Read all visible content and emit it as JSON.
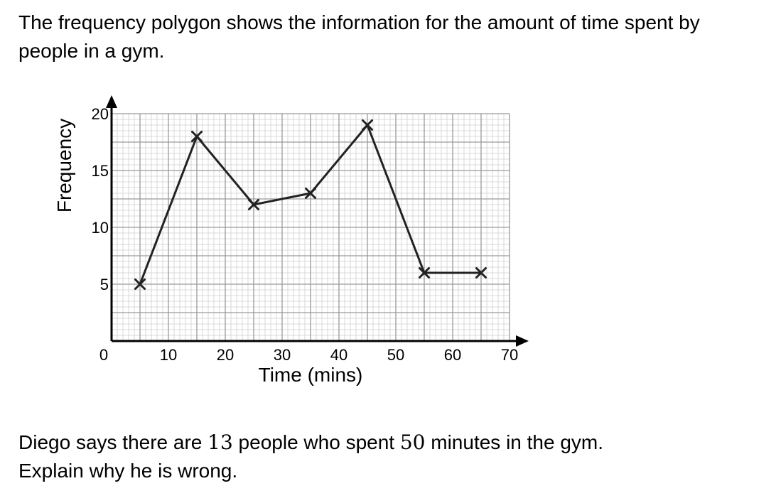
{
  "question": {
    "line1": "The frequency polygon shows the information for the amount of time spent by",
    "line2": "people in a gym."
  },
  "prompt": {
    "part1": "Diego says there are ",
    "num1": "13",
    "part2": " people who spent ",
    "num2": "50",
    "part3": " minutes in the gym.",
    "line2": "Explain why he is wrong."
  },
  "chart_data": {
    "type": "line",
    "xlabel": "Time (mins)",
    "ylabel": "Frequency",
    "xlim": [
      0,
      70
    ],
    "ylim": [
      0,
      20
    ],
    "x_ticks": [
      10,
      20,
      30,
      40,
      50,
      60,
      70
    ],
    "y_ticks": [
      5,
      10,
      15,
      20
    ],
    "origin_label": "0",
    "grid": true,
    "marker": "cross",
    "series": [
      {
        "x": [
          5,
          15,
          25,
          35,
          45,
          55,
          65
        ],
        "y": [
          5,
          18,
          12,
          13,
          19,
          6,
          6
        ]
      }
    ],
    "line_color": "#222222",
    "grid_major_color": "#9a9a9a",
    "grid_minor_color": "#cfcfcf"
  }
}
